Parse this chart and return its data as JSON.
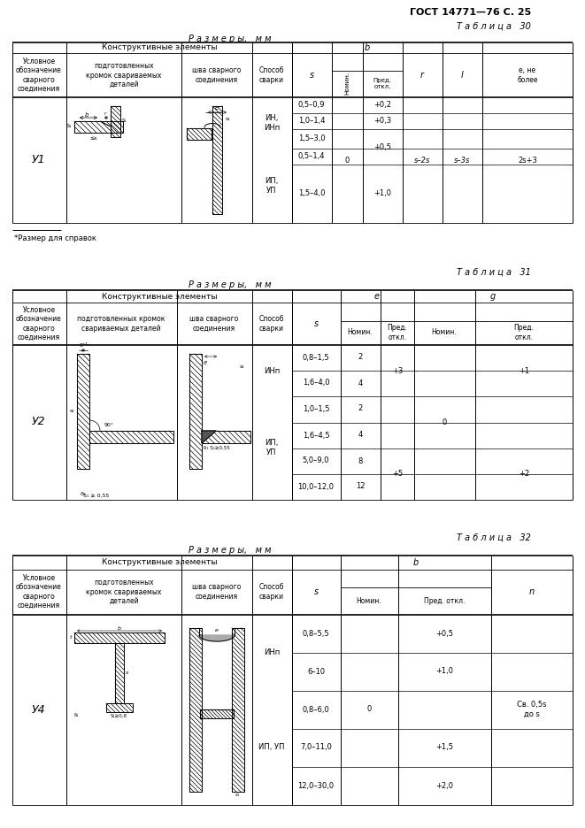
{
  "title_right": "ГОСТ 14771—76 С. 25",
  "table30_title": "Т а б л и ц а   30",
  "table31_title": "Т а б л и ц а   31",
  "table32_title": "Т а б л и ц а   32",
  "razm_mm": "Р а з м е р ы,   м м",
  "footnote": "*Размер для справок",
  "background": "#ffffff"
}
